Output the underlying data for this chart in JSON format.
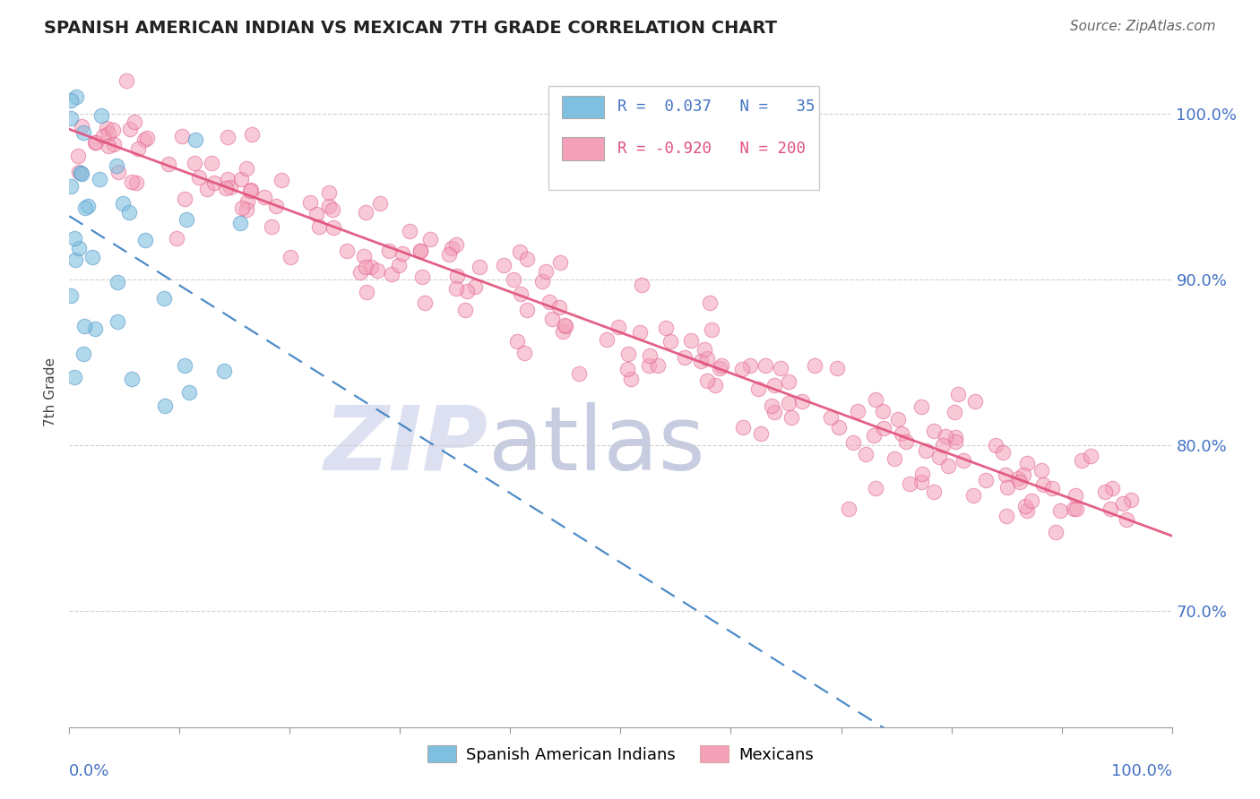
{
  "title": "SPANISH AMERICAN INDIAN VS MEXICAN 7TH GRADE CORRELATION CHART",
  "source": "Source: ZipAtlas.com",
  "ylabel": "7th Grade",
  "ytick_labels": [
    "70.0%",
    "80.0%",
    "90.0%",
    "100.0%"
  ],
  "ytick_values": [
    0.7,
    0.8,
    0.9,
    1.0
  ],
  "xlim": [
    0.0,
    1.0
  ],
  "ylim": [
    0.63,
    1.035
  ],
  "r1": 0.037,
  "n1": 35,
  "r2": -0.92,
  "n2": 200,
  "blue_color": "#7fbfdf",
  "blue_edge_color": "#5599cc",
  "pink_color": "#f4a0b8",
  "pink_edge_color": "#e06090",
  "blue_line_color": "#3a7fc1",
  "pink_line_color": "#e0507a",
  "title_fontsize": 14,
  "background_color": "#ffffff",
  "grid_color": "#cccccc",
  "axis_label_color": "#4472c4",
  "watermark_zip_color": "#dde0f0",
  "watermark_atlas_color": "#c8cce0"
}
